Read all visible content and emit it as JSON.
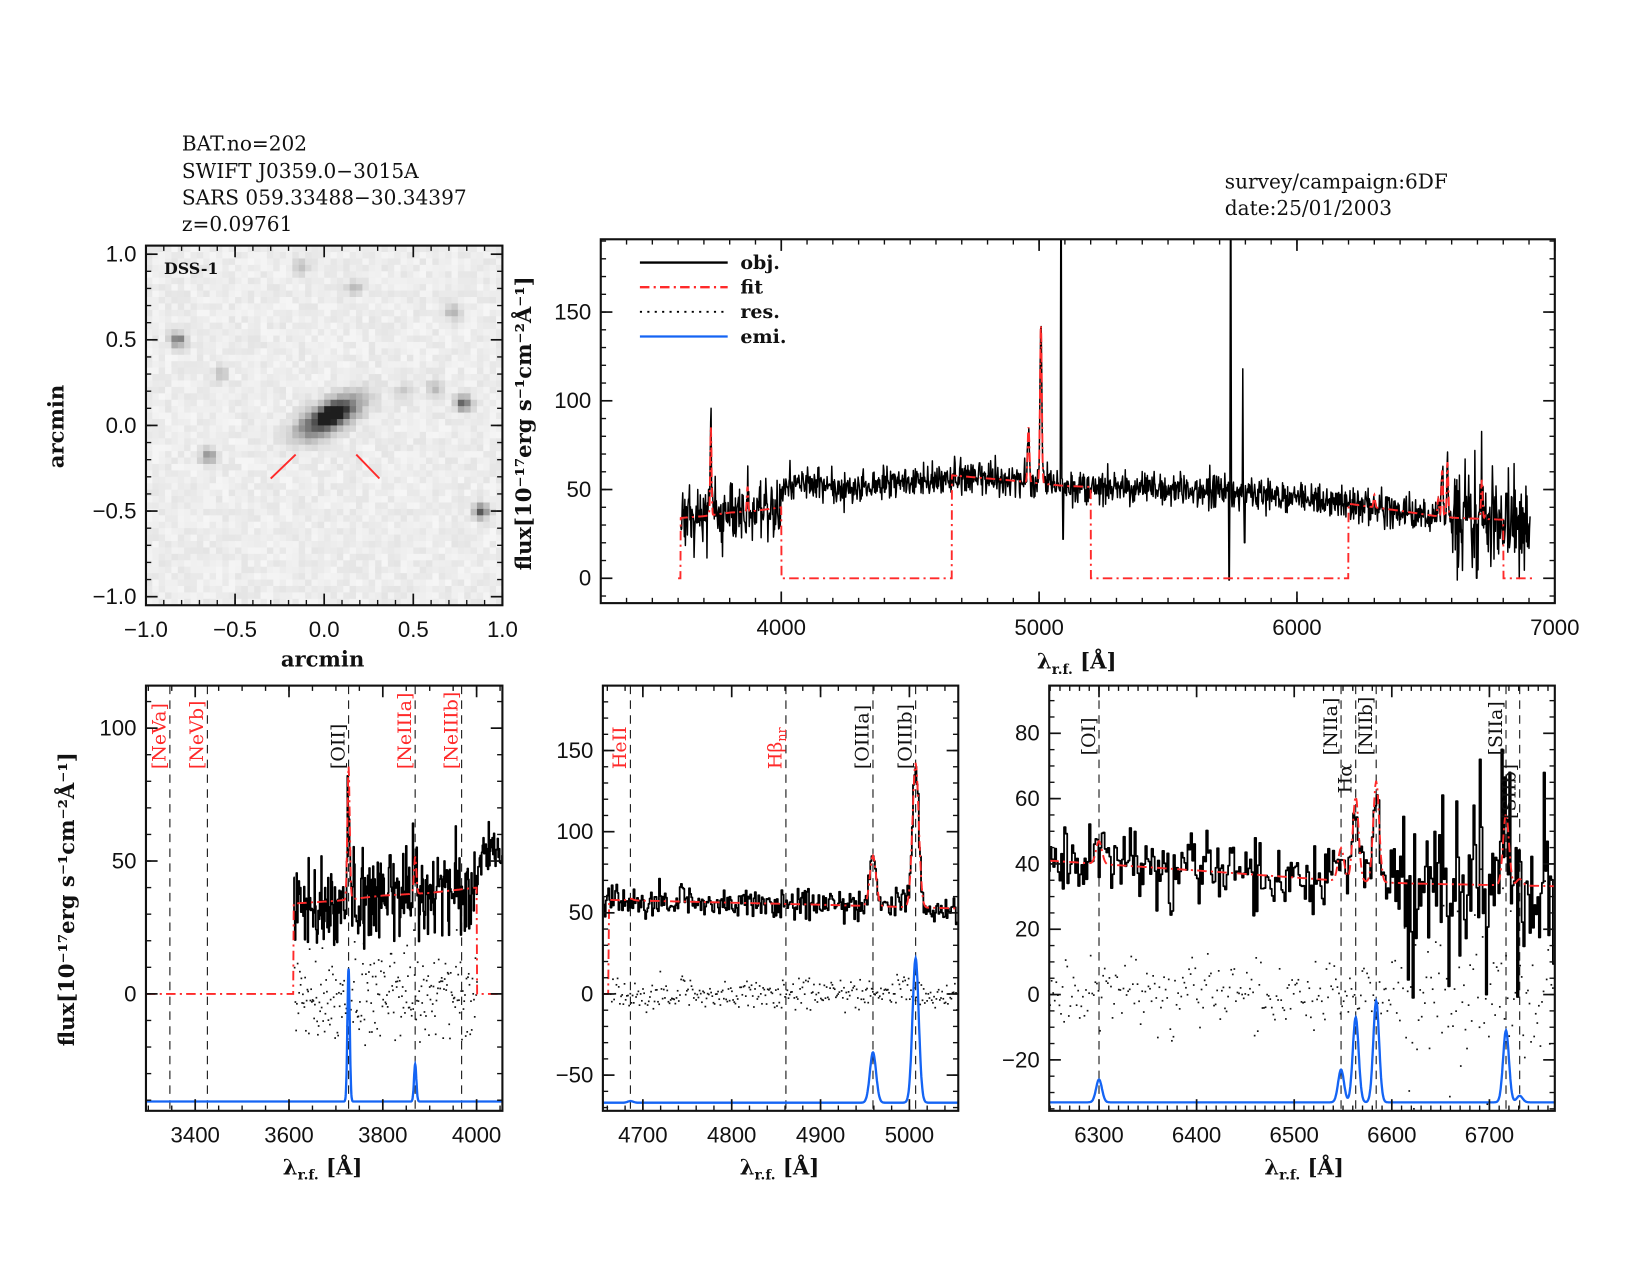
{
  "header": {
    "lines": [
      "BAT.no=202",
      "SWIFT J0359.0−3015A",
      "SARS 059.33488−30.34397",
      "z=0.09761"
    ],
    "survey": "survey/campaign:6DF",
    "date": "date:25/01/2003"
  },
  "colors": {
    "obj": "#000000",
    "fit": "#ff2a2a",
    "res": "#000000",
    "emi": "#1464f4",
    "marker_red": "#ff2a2a",
    "marker_black": "#111111"
  },
  "legend": [
    {
      "label": "obj.",
      "style": "solid",
      "color": "#000000"
    },
    {
      "label": "fit",
      "style": "dash-dot",
      "color": "#ff2a2a"
    },
    {
      "label": "res.",
      "style": "dotted",
      "color": "#000000"
    },
    {
      "label": "emi.",
      "style": "solid",
      "color": "#1464f4"
    }
  ],
  "flux_label": "flux[10⁻¹⁷erg s⁻¹cm⁻²Å⁻¹]",
  "wave_label": {
    "symbol": "λ",
    "sub": "r.f.",
    "unit": " [Å]"
  },
  "spectrum": {
    "obj_range": [
      3610,
      6905
    ],
    "continuum": [
      [
        3610,
        34
      ],
      [
        3700,
        35
      ],
      [
        3800,
        37
      ],
      [
        3900,
        38
      ],
      [
        4000,
        40
      ],
      [
        4010,
        52
      ],
      [
        4100,
        54
      ],
      [
        4300,
        50
      ],
      [
        4500,
        55
      ],
      [
        4660,
        58
      ],
      [
        4900,
        55
      ],
      [
        5100,
        52
      ],
      [
        5500,
        50
      ],
      [
        5800,
        48
      ],
      [
        6000,
        46
      ],
      [
        6200,
        42
      ],
      [
        6250,
        41
      ],
      [
        6400,
        38
      ],
      [
        6540,
        35
      ],
      [
        6620,
        34
      ],
      [
        6800,
        33
      ],
      [
        6905,
        30
      ]
    ],
    "fit_ranges": [
      [
        3610,
        4000
      ],
      [
        4662,
        5200
      ],
      [
        6200,
        6800
      ]
    ],
    "lines": [
      {
        "name": "[OII]",
        "wavelength": 3727,
        "amplitude": 50,
        "sigma": 2.5
      },
      {
        "name": "[NeIIIa]",
        "wavelength": 3869,
        "amplitude": 14,
        "sigma": 2.5
      },
      {
        "name": "HeII",
        "wavelength": 4686,
        "amplitude": 1,
        "sigma": 3
      },
      {
        "name": "[OIIIa]",
        "wavelength": 4959,
        "amplitude": 31,
        "sigma": 3.5
      },
      {
        "name": "[OIIIb]",
        "wavelength": 5007,
        "amplitude": 89,
        "sigma": 3.5
      },
      {
        "name": "[OI]",
        "wavelength": 6300,
        "amplitude": 7,
        "sigma": 3
      },
      {
        "name": "[NIIa]",
        "wavelength": 6548,
        "amplitude": 10,
        "sigma": 3
      },
      {
        "name": "Hα",
        "wavelength": 6563,
        "amplitude": 26,
        "sigma": 3
      },
      {
        "name": "[NIIb]",
        "wavelength": 6584,
        "amplitude": 31,
        "sigma": 3
      },
      {
        "name": "[SIIa]",
        "wavelength": 6717,
        "amplitude": 22,
        "sigma": 3
      },
      {
        "name": "[SIIb]",
        "wavelength": 6731,
        "amplitude": 2,
        "sigma": 3
      }
    ],
    "obj_spikes": [
      {
        "wavelength": 5085,
        "flux": 195
      },
      {
        "wavelength": 5093,
        "flux": 22
      },
      {
        "wavelength": 5737,
        "flux": -1
      },
      {
        "wavelength": 5743,
        "flux": 195
      },
      {
        "wavelength": 5790,
        "flux": 118
      },
      {
        "wavelength": 5797,
        "flux": 20
      },
      {
        "wavelength": 6622,
        "flux": -1
      },
      {
        "wavelength": 6690,
        "flux": 72
      },
      {
        "wavelength": 6697,
        "flux": 0
      }
    ]
  },
  "chart_data": [
    {
      "type": "image",
      "label": "DSS-1",
      "xlabel": "arcmin",
      "ylabel": "arcmin",
      "xlim": [
        -1.0,
        1.0
      ],
      "ylim": [
        -1.05,
        1.05
      ],
      "xticks": {
        "values": [
          -1,
          -0.5,
          0,
          0.5,
          1
        ],
        "labels": [
          "−1.0",
          "−0.5",
          "0.0",
          "0.5",
          "1.0"
        ],
        "minor": 0.1
      },
      "yticks": {
        "values": [
          -1,
          -0.5,
          0,
          0.5,
          1
        ],
        "labels": [
          "−1.0",
          "−0.5",
          "0.0",
          "0.5",
          "1.0"
        ],
        "minor": 0.1
      },
      "sources": [
        {
          "x": 0.03,
          "y": 0.05,
          "brightness": 1.0,
          "sx": 0.13,
          "sy": 0.055,
          "angle": 30
        },
        {
          "x": 0.05,
          "y": 0.07,
          "brightness": 0.6,
          "sx": 0.045,
          "sy": 0.03,
          "angle": 30
        },
        {
          "x": -0.82,
          "y": 0.5,
          "brightness": 0.55,
          "sx": 0.03,
          "sy": 0.03,
          "angle": 0
        },
        {
          "x": 0.78,
          "y": 0.13,
          "brightness": 0.7,
          "sx": 0.03,
          "sy": 0.03,
          "angle": 0
        },
        {
          "x": 0.88,
          "y": -0.5,
          "brightness": 0.7,
          "sx": 0.03,
          "sy": 0.03,
          "angle": 0
        },
        {
          "x": -0.65,
          "y": -0.18,
          "brightness": 0.45,
          "sx": 0.03,
          "sy": 0.03,
          "angle": 0
        },
        {
          "x": 0.72,
          "y": 0.66,
          "brightness": 0.3,
          "sx": 0.03,
          "sy": 0.03,
          "angle": 0
        },
        {
          "x": 0.17,
          "y": 0.8,
          "brightness": 0.25,
          "sx": 0.03,
          "sy": 0.03,
          "angle": 0
        },
        {
          "x": -0.13,
          "y": 0.93,
          "brightness": 0.25,
          "sx": 0.03,
          "sy": 0.03,
          "angle": 0
        },
        {
          "x": -0.58,
          "y": 0.3,
          "brightness": 0.2,
          "sx": 0.03,
          "sy": 0.03,
          "angle": 0
        },
        {
          "x": 0.62,
          "y": 0.22,
          "brightness": 0.25,
          "sx": 0.03,
          "sy": 0.03,
          "angle": 0
        },
        {
          "x": 0.45,
          "y": 0.2,
          "brightness": 0.18,
          "sx": 0.03,
          "sy": 0.03,
          "angle": 0
        }
      ],
      "markers": [
        [
          [
            -0.3,
            -0.31
          ],
          [
            -0.16,
            -0.17
          ]
        ],
        [
          [
            0.18,
            -0.17
          ],
          [
            0.31,
            -0.31
          ]
        ]
      ]
    },
    {
      "type": "line",
      "xlim": [
        3300,
        7000
      ],
      "ylim": [
        -14,
        191
      ],
      "xticks": {
        "values": [
          4000,
          5000,
          6000,
          7000
        ],
        "labels": [
          "4000",
          "5000",
          "6000",
          "7000"
        ],
        "minor": 100
      },
      "yticks": {
        "values": [
          0,
          50,
          100,
          150
        ],
        "labels": [
          "0",
          "50",
          "100",
          "150"
        ],
        "minor": 10
      },
      "sample_step": 2,
      "show": [
        "obj",
        "fit"
      ],
      "legend": "top-left"
    },
    {
      "type": "line",
      "xlim": [
        3295,
        4055
      ],
      "ylim": [
        -44,
        116
      ],
      "xticks": {
        "values": [
          3400,
          3600,
          3800,
          4000
        ],
        "labels": [
          "3400",
          "3600",
          "3800",
          "4000"
        ],
        "minor": 50
      },
      "yticks": {
        "values": [
          0,
          50,
          100
        ],
        "labels": [
          "0",
          "50",
          "100"
        ],
        "minor": 10
      },
      "sample_step": 1.6,
      "emi_offset": -40.5,
      "show": [
        "obj",
        "fit",
        "res",
        "emi"
      ],
      "line_markers": [
        {
          "label": "[NeVa]",
          "wavelength": 3346,
          "color": "#ff2a2a"
        },
        {
          "label": "[NeVb]",
          "wavelength": 3426,
          "color": "#ff2a2a"
        },
        {
          "label": "[OII]",
          "wavelength": 3727,
          "color": "#111111"
        },
        {
          "label": "[NeIIIa]",
          "wavelength": 3869,
          "color": "#ff2a2a"
        },
        {
          "label": "[NeIIIb]",
          "wavelength": 3968,
          "color": "#ff2a2a"
        }
      ]
    },
    {
      "type": "line",
      "xlim": [
        4655,
        5055
      ],
      "ylim": [
        -72,
        190
      ],
      "xticks": {
        "values": [
          4700,
          4800,
          4900,
          5000
        ],
        "labels": [
          "4700",
          "4800",
          "4900",
          "5000"
        ],
        "minor": 20
      },
      "yticks": {
        "values": [
          -50,
          0,
          50,
          100,
          150
        ],
        "labels": [
          "−50",
          "0",
          "50",
          "100",
          "150"
        ],
        "minor": 10
      },
      "sample_step": 1.3,
      "emi_offset": -67,
      "show": [
        "obj",
        "fit",
        "res",
        "emi"
      ],
      "line_markers": [
        {
          "label": "HeII",
          "wavelength": 4686,
          "color": "#ff2a2a"
        },
        {
          "label": "Hβ",
          "sub": "nr",
          "wavelength": 4861,
          "color": "#ff2a2a"
        },
        {
          "label": "[OIIIa]",
          "wavelength": 4959,
          "color": "#111111"
        },
        {
          "label": "[OIIIb]",
          "wavelength": 5007,
          "color": "#111111"
        }
      ]
    },
    {
      "type": "line",
      "xlim": [
        6249,
        6767
      ],
      "ylim": [
        -35.6,
        94.6
      ],
      "xticks": {
        "values": [
          6300,
          6400,
          6500,
          6600,
          6700
        ],
        "labels": [
          "6300",
          "6400",
          "6500",
          "6600",
          "6700"
        ],
        "minor": 10
      },
      "yticks": {
        "values": [
          -20,
          0,
          20,
          40,
          60,
          80
        ],
        "labels": [
          "−20",
          "0",
          "20",
          "40",
          "60",
          "80"
        ],
        "minor": 5
      },
      "sample_step": 1.6,
      "emi_offset": -33,
      "show": [
        "obj",
        "fit",
        "res",
        "emi"
      ],
      "line_markers": [
        {
          "label": "[OI]",
          "wavelength": 6300,
          "color": "#111111"
        },
        {
          "label": "[NIIa]",
          "wavelength": 6548,
          "color": "#111111"
        },
        {
          "label": "Hα",
          "wavelength": 6563,
          "color": "#111111"
        },
        {
          "label": "[NIIb]",
          "wavelength": 6584,
          "color": "#111111"
        },
        {
          "label": "[SIIa]",
          "wavelength": 6717,
          "color": "#111111"
        },
        {
          "label": "[SIIb]",
          "wavelength": 6731,
          "color": "#111111"
        }
      ]
    }
  ]
}
